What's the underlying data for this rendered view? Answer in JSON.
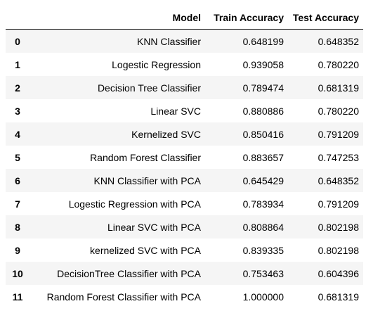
{
  "table": {
    "columns": [
      "",
      "Model",
      "Train Accuracy",
      "Test Accuracy"
    ],
    "rows": [
      {
        "index": "0",
        "model": "KNN Classifier",
        "train": "0.648199",
        "test": "0.648352"
      },
      {
        "index": "1",
        "model": "Logestic Regression",
        "train": "0.939058",
        "test": "0.780220"
      },
      {
        "index": "2",
        "model": "Decision Tree Classifier",
        "train": "0.789474",
        "test": "0.681319"
      },
      {
        "index": "3",
        "model": "Linear SVC",
        "train": "0.880886",
        "test": "0.780220"
      },
      {
        "index": "4",
        "model": "Kernelized SVC",
        "train": "0.850416",
        "test": "0.791209"
      },
      {
        "index": "5",
        "model": "Random Forest Classifier",
        "train": "0.883657",
        "test": "0.747253"
      },
      {
        "index": "6",
        "model": "KNN Classifier with PCA",
        "train": "0.645429",
        "test": "0.648352"
      },
      {
        "index": "7",
        "model": "Logestic Regression with PCA",
        "train": "0.783934",
        "test": "0.791209"
      },
      {
        "index": "8",
        "model": "Linear SVC with PCA",
        "train": "0.808864",
        "test": "0.802198"
      },
      {
        "index": "9",
        "model": "kernelized SVC with PCA",
        "train": "0.839335",
        "test": "0.802198"
      },
      {
        "index": "10",
        "model": "DecisionTree Classifier with PCA",
        "train": "0.753463",
        "test": "0.604396"
      },
      {
        "index": "11",
        "model": "Random Forest Classifier with PCA",
        "train": "1.000000",
        "test": "0.681319"
      }
    ]
  }
}
